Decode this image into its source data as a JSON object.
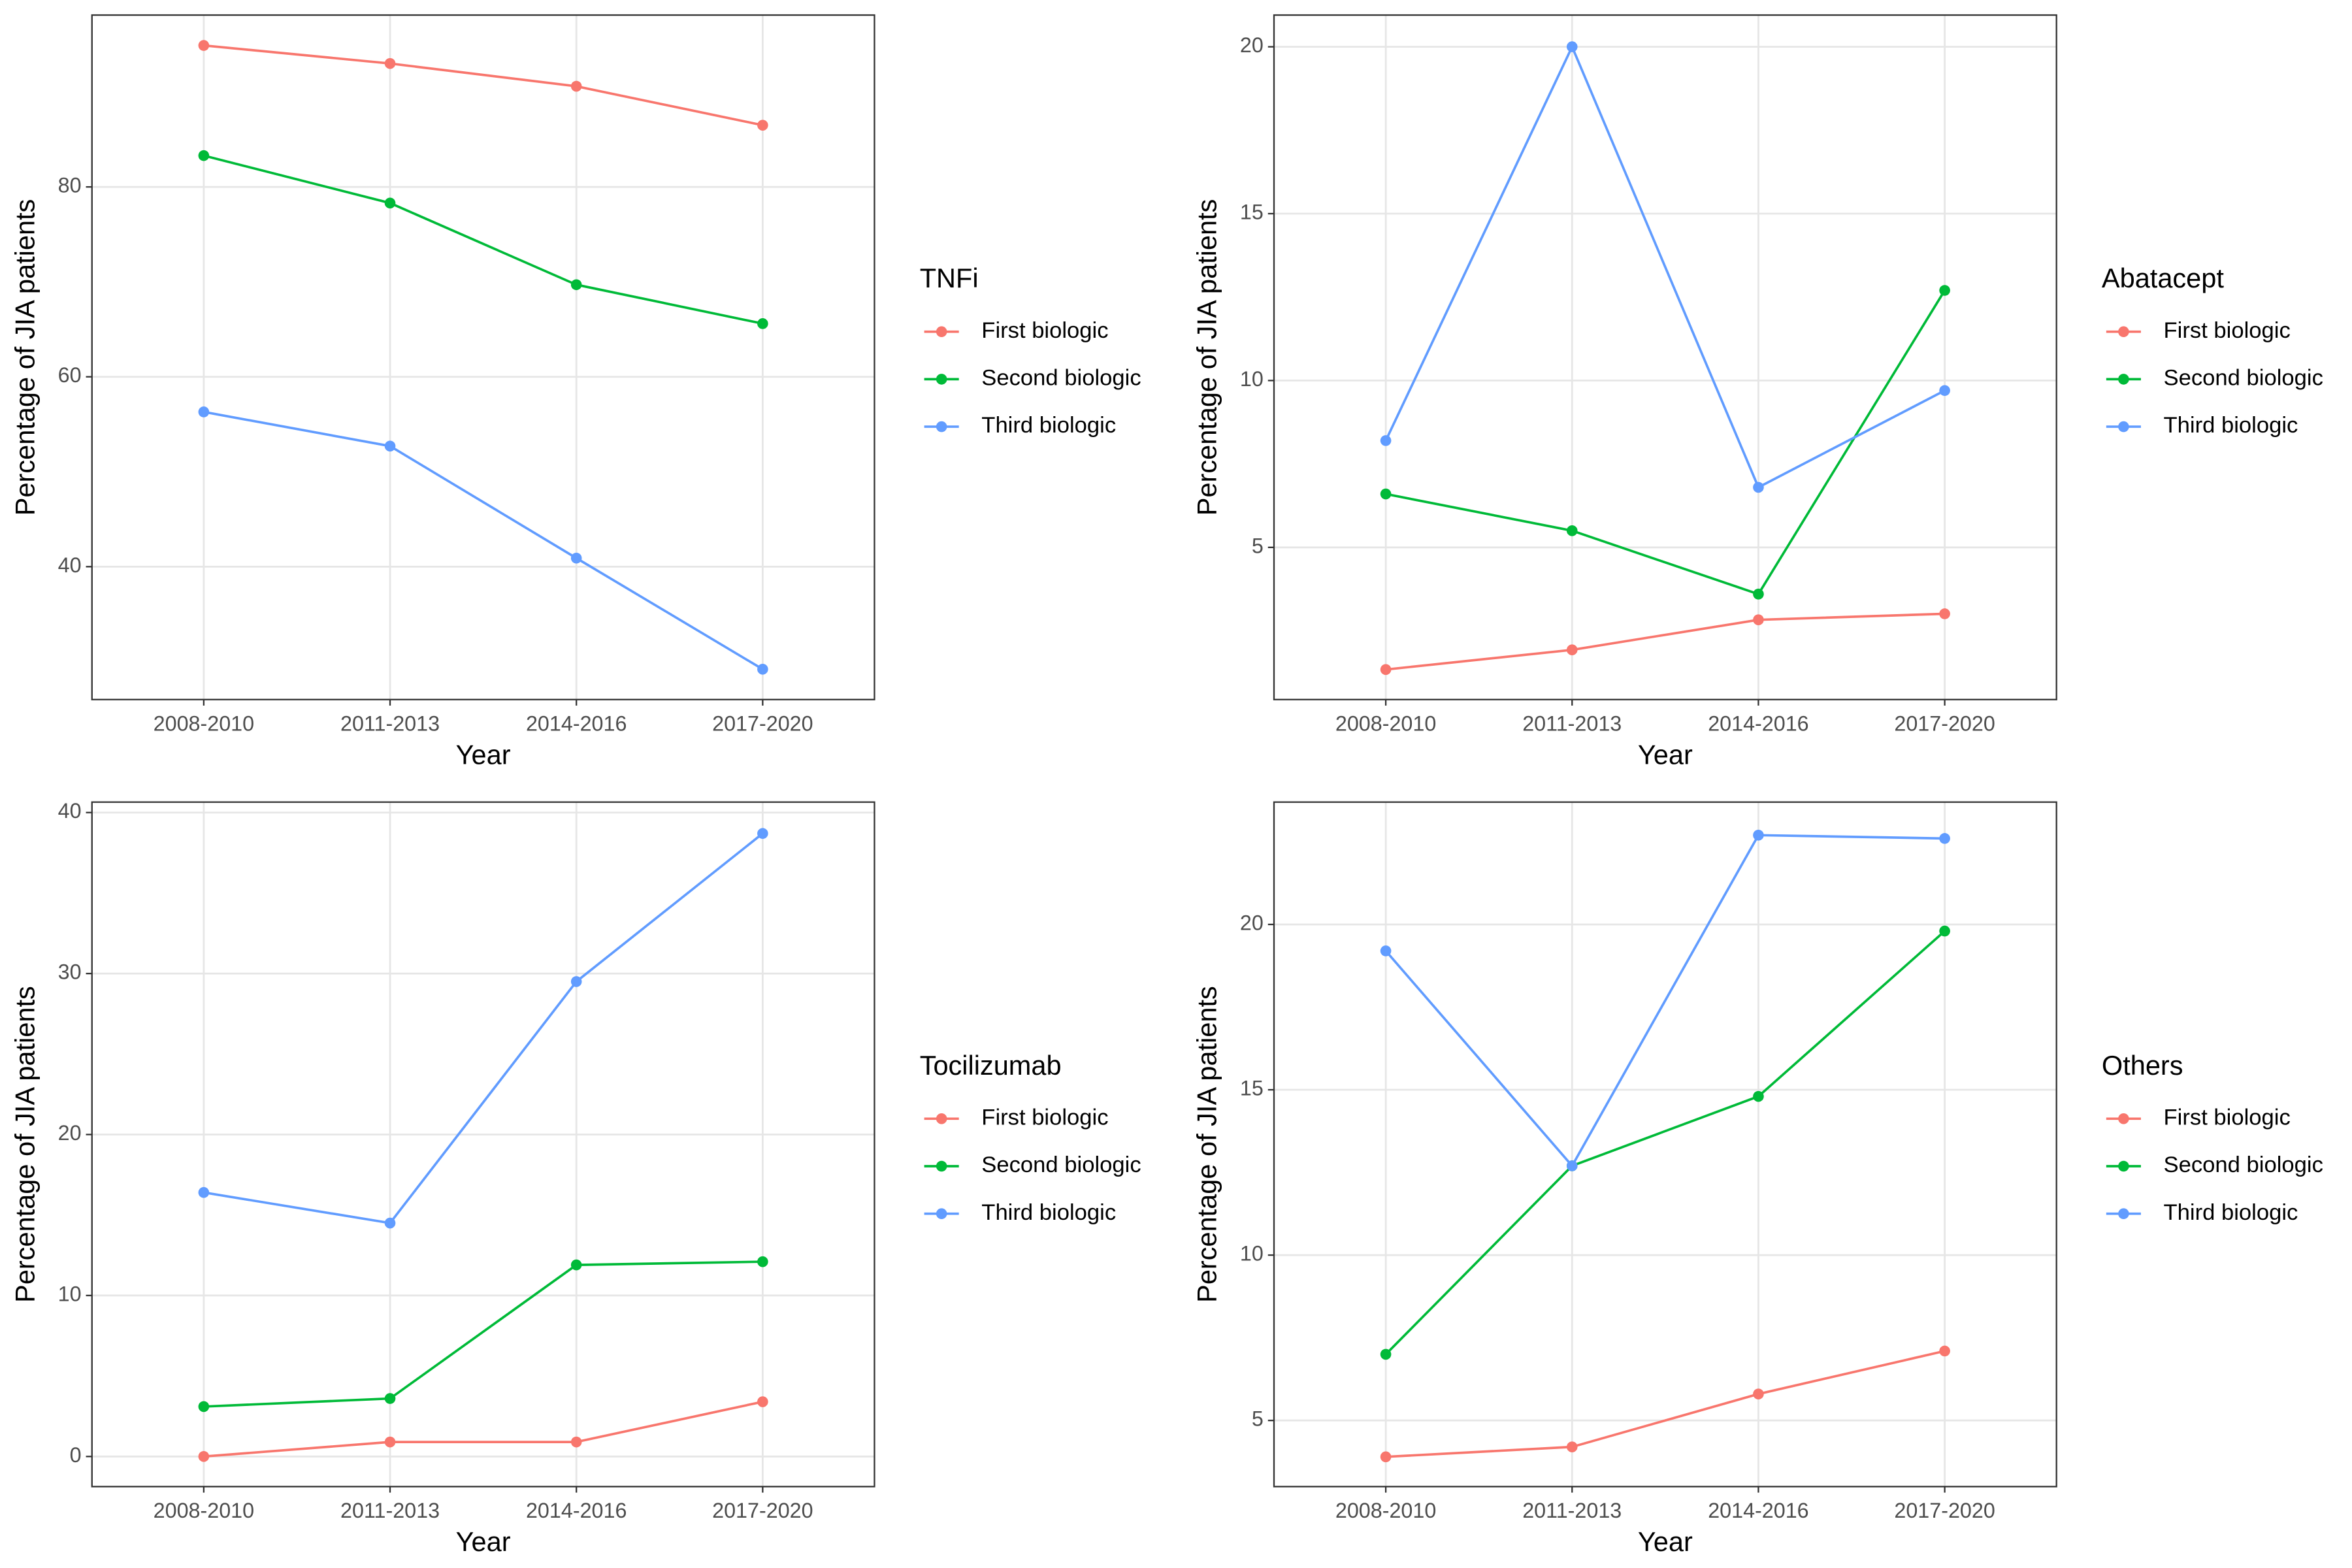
{
  "chart_data": [
    {
      "type": "line",
      "legend_title": "TNFi",
      "x_label": "Year",
      "y_label": "Percentage of JIA patients",
      "categories": [
        "2008-2010",
        "2011-2013",
        "2014-2016",
        "2017-2020"
      ],
      "series": [
        {
          "name": "First biologic",
          "color": "#F8766D",
          "values": [
            94.9,
            93.0,
            90.6,
            86.5
          ]
        },
        {
          "name": "Second biologic",
          "color": "#00BA38",
          "values": [
            83.3,
            78.3,
            69.7,
            65.6
          ]
        },
        {
          "name": "Third biologic",
          "color": "#619CFF",
          "values": [
            56.3,
            52.7,
            40.9,
            29.2
          ]
        }
      ],
      "ylim": [
        26.0,
        98.1
      ],
      "yticks": [
        40,
        60,
        80
      ],
      "grid": true
    },
    {
      "type": "line",
      "legend_title": "Abatacept",
      "x_label": "Year",
      "y_label": "Percentage of JIA patients",
      "categories": [
        "2008-2010",
        "2011-2013",
        "2014-2016",
        "2017-2020"
      ],
      "series": [
        {
          "name": "First biologic",
          "color": "#F8766D",
          "values": [
            1.34,
            1.93,
            2.83,
            3.01
          ]
        },
        {
          "name": "Second biologic",
          "color": "#00BA38",
          "values": [
            6.6,
            5.5,
            3.6,
            12.7
          ]
        },
        {
          "name": "Third biologic",
          "color": "#619CFF",
          "values": [
            8.2,
            20.0,
            6.8,
            9.7
          ]
        }
      ],
      "ylim": [
        0.44,
        20.95
      ],
      "yticks": [
        5,
        10,
        15,
        20
      ],
      "grid": true
    },
    {
      "type": "line",
      "legend_title": "Tocilizumab",
      "x_label": "Year",
      "y_label": "Percentage of JIA patients",
      "categories": [
        "2008-2010",
        "2011-2013",
        "2014-2016",
        "2017-2020"
      ],
      "series": [
        {
          "name": "First biologic",
          "color": "#F8766D",
          "values": [
            0,
            0.9,
            0.9,
            3.4
          ]
        },
        {
          "name": "Second biologic",
          "color": "#00BA38",
          "values": [
            3.1,
            3.6,
            11.9,
            12.1
          ]
        },
        {
          "name": "Third biologic",
          "color": "#619CFF",
          "values": [
            16.4,
            14.5,
            29.5,
            38.7
          ]
        }
      ],
      "ylim": [
        -1.87,
        40.65
      ],
      "yticks": [
        0,
        10,
        20,
        30,
        40
      ],
      "grid": true
    },
    {
      "type": "line",
      "legend_title": "Others",
      "x_label": "Year",
      "y_label": "Percentage of JIA patients",
      "categories": [
        "2008-2010",
        "2011-2013",
        "2014-2016",
        "2017-2020"
      ],
      "series": [
        {
          "name": "First biologic",
          "color": "#F8766D",
          "values": [
            3.9,
            4.2,
            5.8,
            7.1
          ]
        },
        {
          "name": "Second biologic",
          "color": "#00BA38",
          "values": [
            7.0,
            12.7,
            14.8,
            19.8
          ]
        },
        {
          "name": "Third biologic",
          "color": "#619CFF",
          "values": [
            19.2,
            12.7,
            22.7,
            22.6
          ]
        }
      ],
      "ylim": [
        3.0,
        23.7
      ],
      "yticks": [
        5,
        10,
        15,
        20
      ],
      "grid": true
    }
  ]
}
